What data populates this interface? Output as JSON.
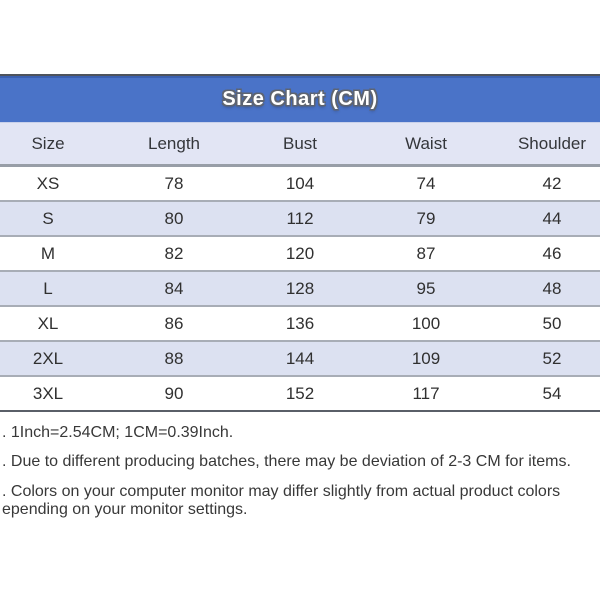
{
  "chart_data": {
    "type": "table",
    "title": "Size Chart (CM)",
    "columns": [
      "Size",
      "Length",
      "Bust",
      "Waist",
      "Shoulder"
    ],
    "rows": [
      [
        "XS",
        "78",
        "104",
        "74",
        "42"
      ],
      [
        "S",
        "80",
        "112",
        "79",
        "44"
      ],
      [
        "M",
        "82",
        "120",
        "87",
        "46"
      ],
      [
        "L",
        "84",
        "128",
        "95",
        "48"
      ],
      [
        "XL",
        "86",
        "136",
        "100",
        "50"
      ],
      [
        "2XL",
        "88",
        "144",
        "109",
        "52"
      ],
      [
        "3XL",
        "90",
        "152",
        "117",
        "54"
      ]
    ]
  },
  "notes": {
    "line1": ". 1Inch=2.54CM; 1CM=0.39Inch.",
    "line2": ". Due to different producing batches, there may be deviation of 2-3 CM for items.",
    "line3": ". Colors on your computer monitor may differ slightly from actual product colors",
    "line4": "epending on your monitor settings."
  },
  "colors": {
    "title_bar_blue": "#4a73c8",
    "header_row_bg": "#e2e5f4",
    "alt_row_bg": "#dce1f1",
    "row_border_gray": "#a8adb6",
    "outer_border_gray": "#4e535c",
    "text": "#303030"
  }
}
